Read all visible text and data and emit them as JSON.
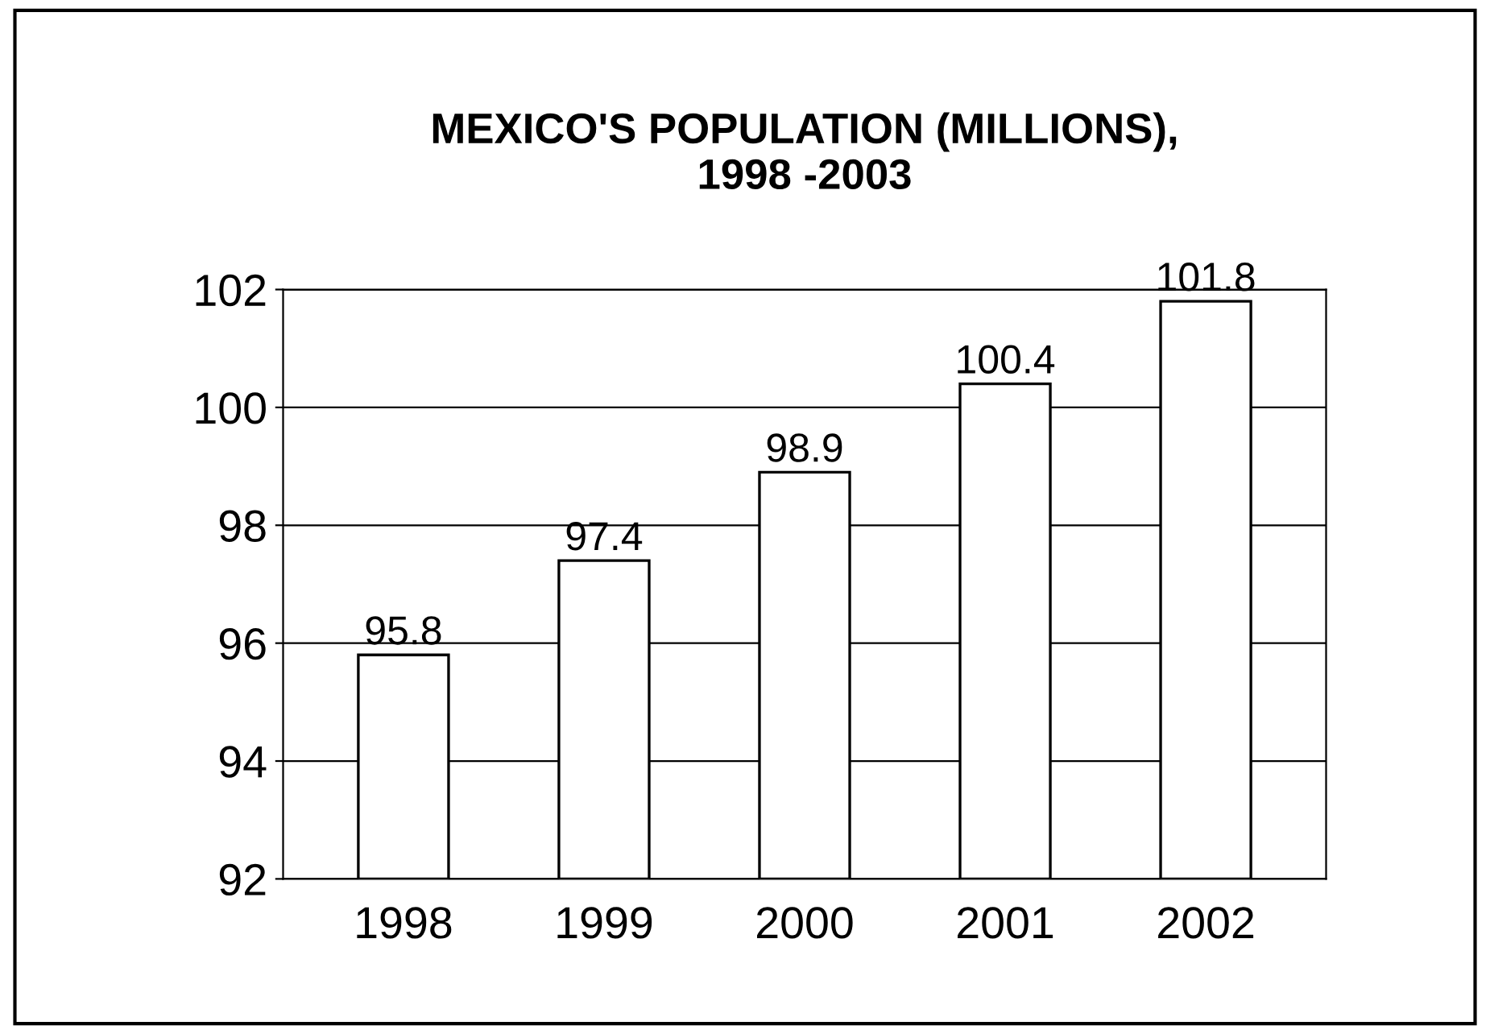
{
  "chart_data": {
    "type": "bar",
    "title": "MEXICO'S POPULATION (MILLIONS),\n1998 -2003",
    "categories": [
      "1998",
      "1999",
      "2000",
      "2001",
      "2002"
    ],
    "values": [
      95.8,
      97.4,
      98.9,
      100.4,
      101.8
    ],
    "color": "#ffffff",
    "ylim": [
      92,
      102
    ],
    "yticks": [
      92,
      94,
      96,
      98,
      100,
      102
    ],
    "grid": "y",
    "data_labels": true
  }
}
